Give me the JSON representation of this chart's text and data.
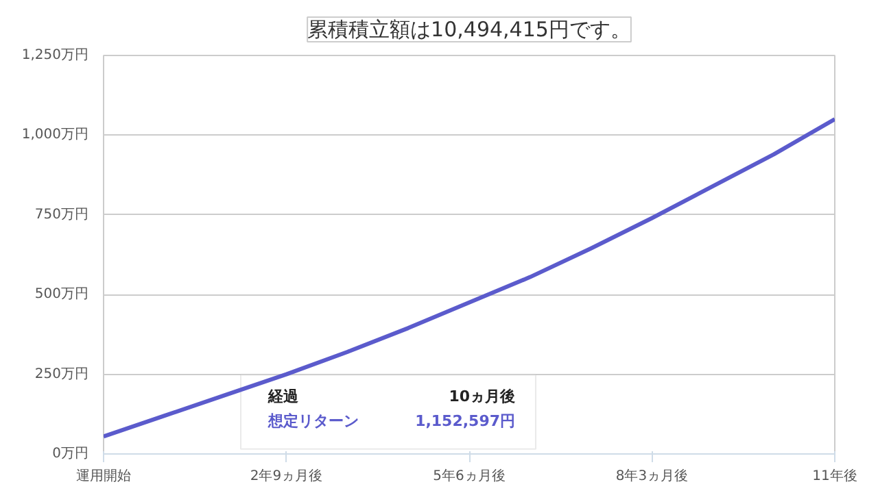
{
  "chart_data": {
    "type": "line",
    "title": "累積積立額は10,494,415円です。",
    "categories": [
      "運用開始",
      null,
      null,
      "2年9ヵ月後",
      null,
      null,
      "5年6ヵ月後",
      null,
      null,
      "8年3ヵ月後",
      null,
      null,
      "11年後"
    ],
    "series": [
      {
        "color": "#5b5bcc",
        "values": [
          55,
          120,
          185,
          250,
          320,
          395,
          475,
          555,
          645,
          740,
          840,
          940,
          1050
        ]
      }
    ],
    "ylim": [
      0,
      1250
    ],
    "yticks": [
      {
        "value": 0,
        "label": "0万円"
      },
      {
        "value": 250,
        "label": "250万円"
      },
      {
        "value": 500,
        "label": "500万円"
      },
      {
        "value": 750,
        "label": "750万円"
      },
      {
        "value": 1000,
        "label": "1,000万円"
      },
      {
        "value": 1250,
        "label": "1,250万円"
      }
    ],
    "grid": "y",
    "annotations": [
      "経過",
      "10ヵ月後",
      "想定リターン",
      "1,152,597円"
    ]
  }
}
